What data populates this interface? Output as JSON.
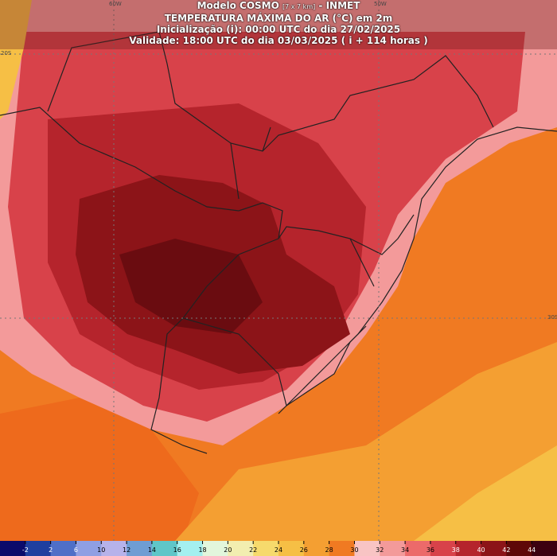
{
  "header": {
    "model": "Modelo COSMO",
    "resolution": "[7 x 7 km]",
    "source": "- INMET",
    "title": "TEMPERATURA MÁXIMA DO AR (°C) em 2m",
    "init": "Inicialização (i): 00:00 UTC do dia 27/02/2025",
    "valid": "Validade: 18:00 UTC do dia 03/03/2025 ( i + 114 horas )"
  },
  "grid_labels": {
    "lon": [
      "60W",
      "50W"
    ],
    "lat": [
      "20S",
      "30S"
    ]
  },
  "colorbar": {
    "ticks": [
      -2,
      2,
      6,
      10,
      12,
      14,
      16,
      18,
      20,
      22,
      24,
      26,
      28,
      30,
      32,
      34,
      36,
      38,
      40,
      42,
      44
    ],
    "colors": [
      "#0b0b6b",
      "#1f3f9f",
      "#4f6fc7",
      "#8f9fe3",
      "#b6b2ea",
      "#6f9dd3",
      "#5fc6c8",
      "#a4f0ef",
      "#e2f6dc",
      "#f2eeb0",
      "#f6da6c",
      "#f6bf45",
      "#f49f32",
      "#f07a22",
      "#f8c4c4",
      "#f39a9a",
      "#ec6a6a",
      "#d8424a",
      "#b5242c",
      "#8c1418",
      "#5e0808",
      "#3c0010"
    ]
  }
}
